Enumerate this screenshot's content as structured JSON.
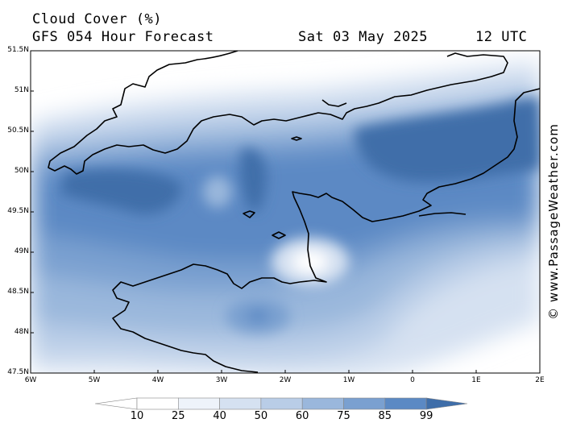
{
  "header": {
    "title": "Cloud Cover (%)",
    "subtitle": "GFS 054 Hour Forecast",
    "date": "Sat 03 May 2025",
    "time": "12 UTC"
  },
  "credit": "© www.PassageWeather.com",
  "axes": {
    "lat_labels": [
      "51.5N",
      "51N",
      "50.5N",
      "50N",
      "49.5N",
      "49N",
      "48.5N",
      "48N",
      "47.5N"
    ],
    "lon_labels": [
      "6W",
      "5W",
      "4W",
      "3W",
      "2W",
      "1W",
      "0",
      "1E",
      "2E"
    ]
  },
  "colorbar": {
    "labels": [
      "10",
      "25",
      "40",
      "50",
      "60",
      "75",
      "85",
      "99"
    ],
    "colors": [
      "#ffffff",
      "#eef3fa",
      "#d5e1f1",
      "#b9cde7",
      "#9ab7dc",
      "#7aa0d0",
      "#5b89c4",
      "#3f6ea9"
    ]
  },
  "chart_data": {
    "type": "heatmap",
    "title": "Cloud Cover (%)",
    "lon_range": [
      -6,
      2
    ],
    "lat_range": [
      47.5,
      51.5
    ],
    "levels": [
      10,
      25,
      40,
      50,
      60,
      75,
      85,
      99
    ]
  }
}
